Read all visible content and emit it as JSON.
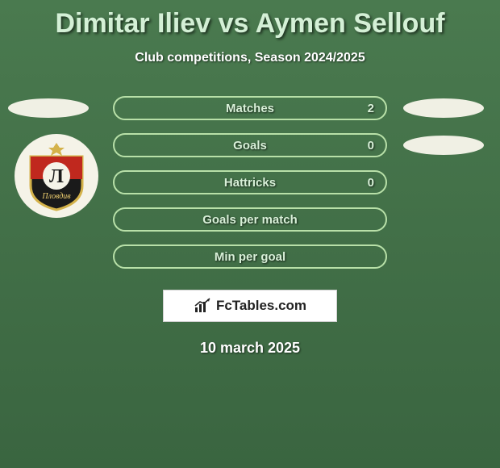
{
  "title": "Dimitar Iliev vs Aymen Sellouf",
  "subtitle": "Club competitions, Season 2024/2025",
  "date": "10 march 2025",
  "branding_text": "FcTables.com",
  "stats": [
    {
      "label": "Matches",
      "value": "2",
      "show_left_ellipse": true,
      "show_right_ellipse": true
    },
    {
      "label": "Goals",
      "value": "0",
      "show_left_ellipse": false,
      "show_right_ellipse": true
    },
    {
      "label": "Hattricks",
      "value": "0",
      "show_left_ellipse": false,
      "show_right_ellipse": false
    },
    {
      "label": "Goals per match",
      "value": "",
      "show_left_ellipse": false,
      "show_right_ellipse": false
    },
    {
      "label": "Min per goal",
      "value": "",
      "show_left_ellipse": false,
      "show_right_ellipse": false
    }
  ],
  "club_badge": {
    "outer_bg": "#f5f3e8",
    "shield_top": "#c0281e",
    "shield_bottom": "#1a1a1a",
    "shield_border": "#d4b24a",
    "letter": "Л",
    "letter_color": "#1a1a1a",
    "script_text": "Пловдив",
    "script_color": "#f0d070",
    "star_color": "#d4b24a"
  },
  "style": {
    "pill_border": "#b8e0a8",
    "pill_text": "#d8f0d8",
    "ellipse_bg": "#f0f0e4",
    "title_color": "#d4f0d6"
  }
}
